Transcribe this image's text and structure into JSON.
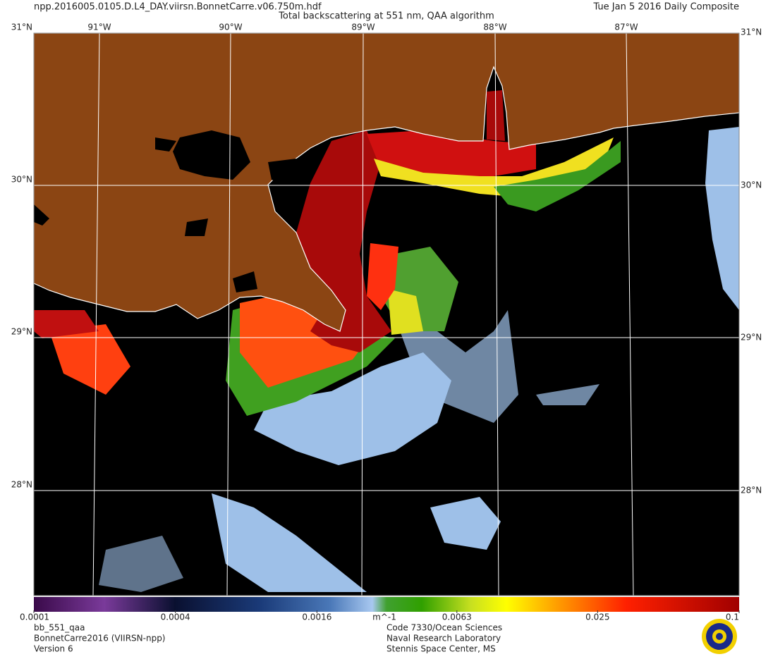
{
  "header": {
    "filename": "npp.2016005.0105.D.L4_DAY.viirsn.BonnetCarre.v06.750m.hdf",
    "title": "Total backscattering at 551 nm, QAA algorithm",
    "date": "Tue Jan  5 2016 Daily Composite"
  },
  "map": {
    "longitude_labels": [
      "91°W",
      "90°W",
      "89°W",
      "88°W",
      "87°W"
    ],
    "latitude_labels": [
      "31°N",
      "30°N",
      "29°N",
      "28°N"
    ]
  },
  "colorbar": {
    "scale": "log",
    "range": [
      0.0001,
      0.1
    ],
    "ticks": [
      0.0001,
      0.0004,
      0.0016,
      0.0063,
      0.025,
      0.1
    ],
    "unit": "m^-1"
  },
  "footer": {
    "product": [
      "bb_551_qaa",
      "BonnetCarre2016 (VIIRSN-npp)",
      "Version 6"
    ],
    "organization": [
      "Code 7330/Ocean Sciences",
      "Naval Research Laboratory",
      "Stennis Space Center, MS"
    ]
  }
}
